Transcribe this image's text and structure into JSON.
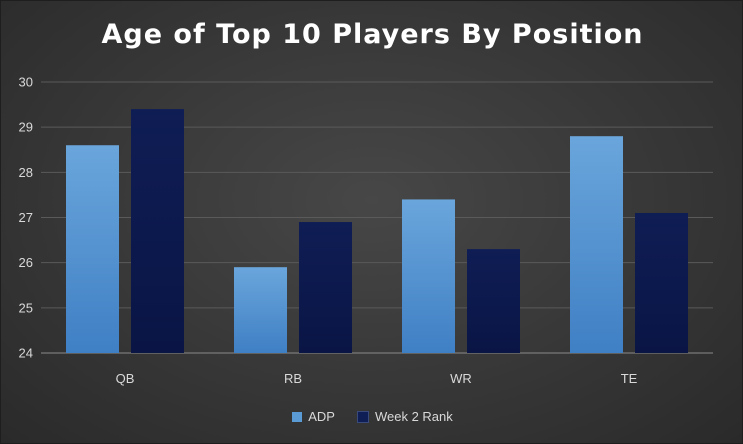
{
  "chart_data": {
    "type": "bar",
    "title": "Age of Top 10 Players By Position",
    "categories": [
      "QB",
      "RB",
      "WR",
      "TE"
    ],
    "series": [
      {
        "name": "ADP",
        "values": [
          28.6,
          25.9,
          27.4,
          28.8
        ],
        "color": "#5b9bd5"
      },
      {
        "name": "Week 2 Rank",
        "values": [
          29.4,
          26.9,
          26.3,
          27.1
        ],
        "color": "#0f1f55"
      }
    ],
    "ylim": [
      24,
      30
    ],
    "yticks": [
      "24",
      "25",
      "26",
      "27",
      "28",
      "29",
      "30"
    ],
    "grid": true,
    "legend_position": "bottom"
  }
}
